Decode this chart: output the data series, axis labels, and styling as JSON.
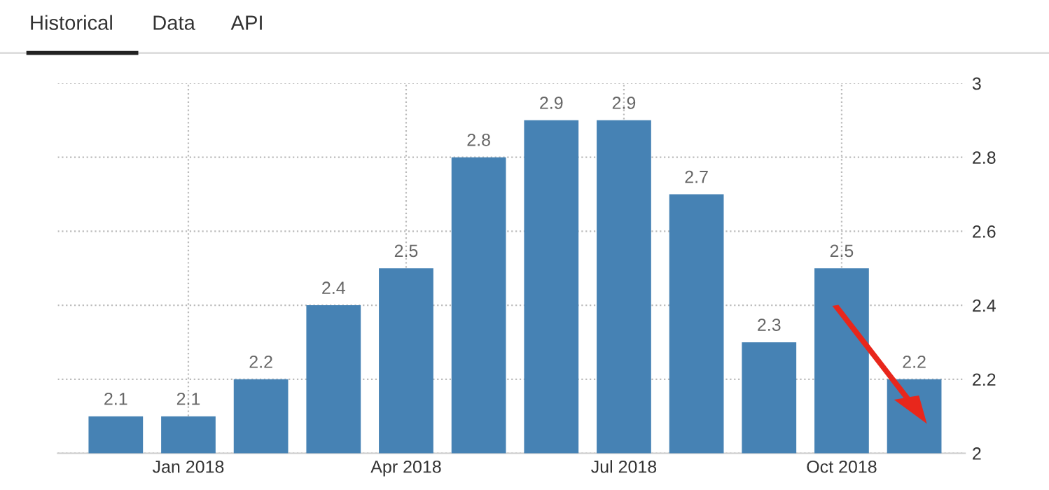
{
  "chart_data": {
    "type": "bar",
    "categories": [
      null,
      "Jan 2018",
      null,
      null,
      "Apr 2018",
      null,
      null,
      "Jul 2018",
      null,
      null,
      "Oct 2018",
      null
    ],
    "values": [
      2.1,
      2.1,
      2.2,
      2.4,
      2.5,
      2.8,
      2.9,
      2.9,
      2.7,
      2.3,
      2.5,
      2.2
    ],
    "color": "#4682b4",
    "ylim": [
      2,
      3
    ],
    "yticks": [
      2,
      2.2,
      2.4,
      2.6,
      2.8,
      3
    ],
    "grid": true,
    "data_labels": true,
    "annotations": [
      "Historical",
      "Data",
      "API"
    ]
  }
}
